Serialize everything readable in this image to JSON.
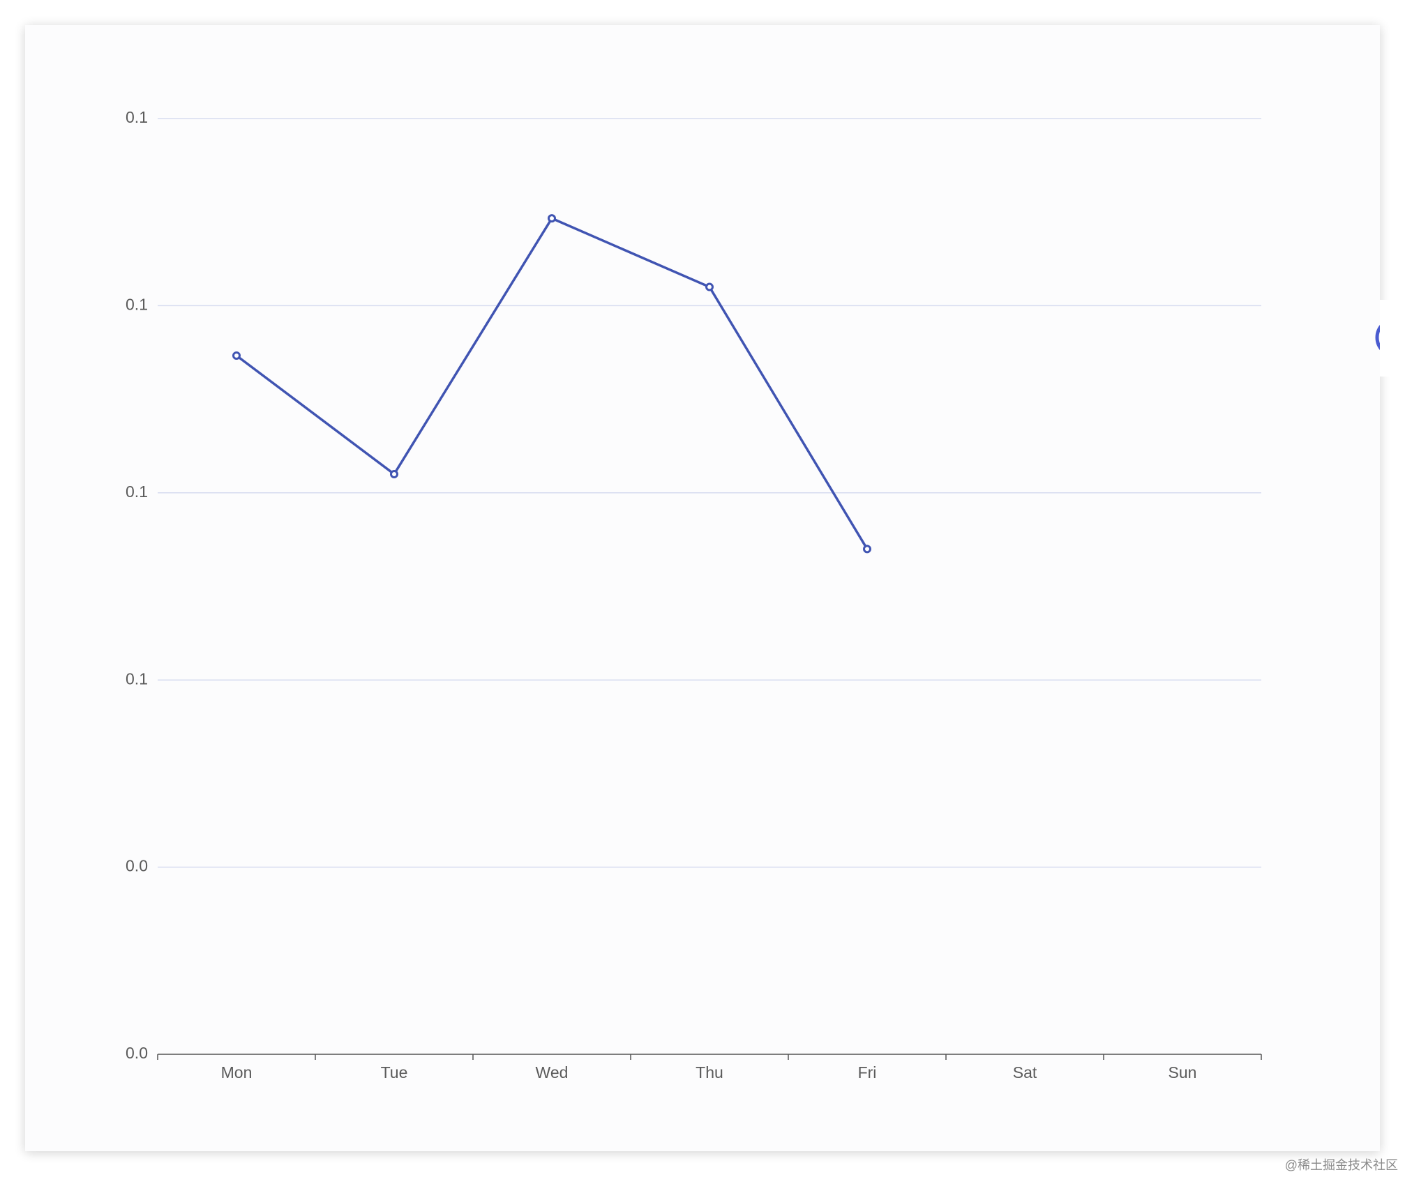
{
  "chart_data": {
    "type": "line",
    "categories": [
      "Mon",
      "Tue",
      "Wed",
      "Thu",
      "Fri",
      "Sat",
      "Sun"
    ],
    "series": [
      {
        "color": "#4054b2",
        "values": [
          0.112,
          0.093,
          0.134,
          0.123,
          0.081,
          null,
          null
        ]
      }
    ],
    "ylim": [
      0,
      0.15
    ],
    "yticks": [
      {
        "value": 0,
        "label": "0.0"
      },
      {
        "value": 0.03,
        "label": "0.0"
      },
      {
        "value": 0.06,
        "label": "0.1"
      },
      {
        "value": 0.09,
        "label": "0.1"
      },
      {
        "value": 0.12,
        "label": "0.1"
      },
      {
        "value": 0.15,
        "label": "0.1"
      }
    ],
    "grid": true
  },
  "watermark": "@稀土掘金技术社区"
}
